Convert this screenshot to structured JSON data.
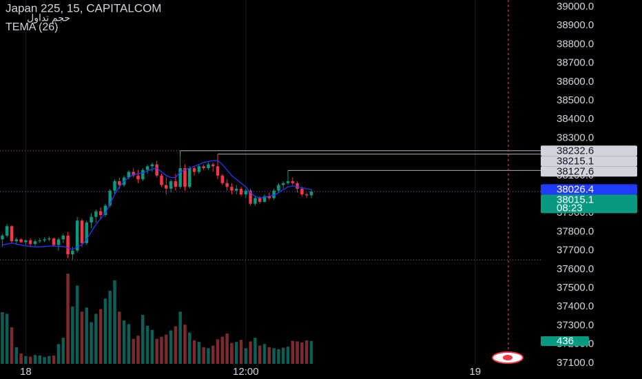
{
  "chart_data": {
    "type": "candlestick",
    "title": "Japan 225, 15, CAPITALCOM",
    "volume_label": "حجم تداول",
    "indicator_label": "TEMA (26)",
    "countdown": "08:23",
    "up_color": "#089981",
    "down_color": "#f23645",
    "tema_color": "#1f3cff",
    "volume_up_color": "#0d5e57",
    "volume_down_color": "#7d2a2f",
    "open": [
      37760,
      37780,
      37830,
      37750,
      37760,
      37745,
      37755,
      37735,
      37750,
      37755,
      37760,
      37765,
      37730,
      37760,
      37780,
      37680,
      37700,
      37860,
      37740,
      37850,
      37880,
      37910,
      37890,
      37940,
      38020,
      38070,
      38050,
      38090,
      38120,
      38100,
      38080,
      38130,
      38150,
      38160,
      38100,
      38050,
      38030,
      38070,
      38040,
      38140,
      38040,
      38140,
      38120,
      38150,
      38140,
      38160,
      38150,
      38100,
      38060,
      38040,
      38020,
      38030,
      38000,
      38020,
      37950,
      37980,
      37960,
      37990,
      37980,
      38020,
      38050,
      38060,
      38070,
      38060,
      38030,
      38000,
      37995
    ],
    "high": [
      37790,
      37842,
      37835,
      37770,
      37765,
      37760,
      37765,
      37760,
      37765,
      37770,
      37775,
      37770,
      37770,
      37790,
      37800,
      37720,
      37880,
      37870,
      37860,
      37900,
      37920,
      37930,
      37950,
      38030,
      38080,
      38090,
      38100,
      38130,
      38140,
      38130,
      38140,
      38160,
      38170,
      38180,
      38110,
      38090,
      38080,
      38110,
      38232.6,
      38160,
      38150,
      38150,
      38160,
      38160,
      38170,
      38170,
      38215.1,
      38110,
      38080,
      38060,
      38050,
      38040,
      38030,
      38030,
      37990,
      37990,
      38000,
      38010,
      38030,
      38060,
      38070,
      38127.6,
      38090,
      38070,
      38040,
      38010,
      38025
    ],
    "low": [
      37720,
      37770,
      37740,
      37735,
      37740,
      37730,
      37725,
      37725,
      37740,
      37745,
      37750,
      37720,
      37700,
      37740,
      37660,
      37650,
      37690,
      37720,
      37730,
      37820,
      37850,
      37870,
      37880,
      37930,
      38000,
      38030,
      38040,
      38080,
      38090,
      38060,
      38070,
      38110,
      38120,
      38090,
      38040,
      38000,
      38010,
      38020,
      38030,
      38020,
      38030,
      38100,
      38110,
      38130,
      38130,
      38120,
      38080,
      38050,
      38020,
      38000,
      38000,
      37990,
      37980,
      37940,
      37940,
      37950,
      37955,
      37970,
      37970,
      38010,
      38030,
      38050,
      38050,
      38010,
      37990,
      37980,
      37980
    ],
    "close": [
      37780,
      37830,
      37750,
      37760,
      37745,
      37755,
      37735,
      37750,
      37755,
      37760,
      37765,
      37730,
      37760,
      37780,
      37680,
      37700,
      37860,
      37740,
      37850,
      37880,
      37910,
      37890,
      37940,
      38020,
      38070,
      38050,
      38090,
      38120,
      38100,
      38080,
      38130,
      38150,
      38160,
      38100,
      38050,
      38030,
      38070,
      38040,
      38140,
      38040,
      38140,
      38120,
      38150,
      38140,
      38160,
      38150,
      38100,
      38060,
      38040,
      38020,
      38030,
      38000,
      38020,
      37950,
      37980,
      37960,
      37990,
      37980,
      38020,
      38050,
      38060,
      38070,
      38060,
      38030,
      38000,
      37995,
      38015.1
    ],
    "volume": [
      990,
      960,
      700,
      320,
      200,
      150,
      140,
      170,
      160,
      130,
      150,
      160,
      380,
      500,
      1730,
      1100,
      1500,
      1000,
      1080,
      800,
      960,
      1050,
      1250,
      1400,
      1600,
      1000,
      830,
      760,
      480,
      540,
      940,
      730,
      650,
      480,
      520,
      560,
      640,
      720,
      1000,
      750,
      600,
      450,
      420,
      320,
      300,
      350,
      470,
      520,
      580,
      400,
      420,
      460,
      300,
      430,
      500,
      350,
      380,
      320,
      300,
      280,
      310,
      330,
      440,
      430,
      410,
      450,
      436
    ],
    "tema": [
      37730,
      37735,
      37740,
      37735,
      37730,
      37725,
      37722,
      37720,
      37720,
      37722,
      37724,
      37725,
      37722,
      37722,
      37715,
      37705,
      37720,
      37730,
      37760,
      37800,
      37840,
      37870,
      37900,
      37950,
      38000,
      38040,
      38070,
      38090,
      38105,
      38110,
      38115,
      38125,
      38135,
      38140,
      38120,
      38100,
      38090,
      38090,
      38120,
      38130,
      38140,
      38150,
      38160,
      38170,
      38175,
      38180,
      38180,
      38160,
      38130,
      38100,
      38080,
      38060,
      38040,
      38010,
      37990,
      37980,
      37985,
      37990,
      37995,
      38010,
      38025,
      38040,
      38045,
      38040,
      38035,
      38030,
      38026.4
    ],
    "price_lines": [
      38232.6,
      38215.1,
      38127.6
    ],
    "xlim": [
      -0.5,
      115
    ],
    "xticks": [
      {
        "value": 5,
        "label": "18"
      },
      {
        "value": 52,
        "label": "12:00"
      },
      {
        "value": 101,
        "label": "19"
      }
    ],
    "ylim": [
      37015,
      39037
    ],
    "yticks": [
      {
        "value": 37100,
        "label": "37100.0"
      },
      {
        "value": 37200,
        "label": "37200.0"
      },
      {
        "value": 37300,
        "label": "37300.0"
      },
      {
        "value": 37400,
        "label": "37400.0"
      },
      {
        "value": 37500,
        "label": "37500.0"
      },
      {
        "value": 37600,
        "label": "37600.0"
      },
      {
        "value": 37700,
        "label": "37700.0"
      },
      {
        "value": 37800,
        "label": "37800.0"
      },
      {
        "value": 37900,
        "label": "37900.0"
      },
      {
        "value": 38000,
        "label": "38000.0"
      },
      {
        "value": 38100,
        "label": "38100.0"
      },
      {
        "value": 38200,
        "label": "38200.0"
      },
      {
        "value": 38300,
        "label": "38300.0"
      },
      {
        "value": 38400,
        "label": "38400.0"
      },
      {
        "value": 38500,
        "label": "38500.0"
      },
      {
        "value": 38600,
        "label": "38600.0"
      },
      {
        "value": 38700,
        "label": "38700.0"
      },
      {
        "value": 38800,
        "label": "38800.0"
      },
      {
        "value": 38900,
        "label": "38900.0"
      },
      {
        "value": 39000,
        "label": "39000.0"
      }
    ],
    "grid": true
  }
}
